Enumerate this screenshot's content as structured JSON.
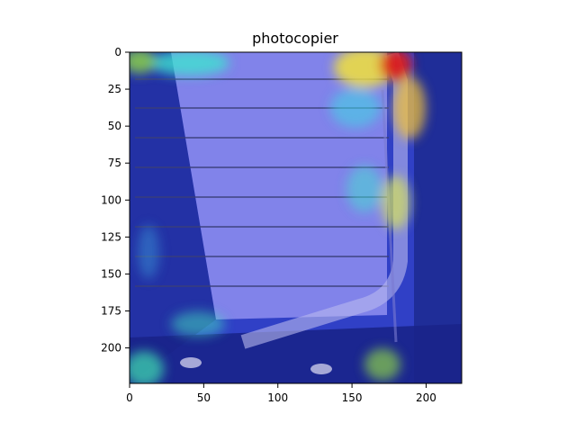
{
  "chart_data": {
    "type": "heatmap",
    "title": "photocopier",
    "image_size": [
      224,
      224
    ],
    "xlim": [
      0,
      224
    ],
    "ylim": [
      224,
      0
    ],
    "x_ticks": [
      0,
      50,
      100,
      150,
      200
    ],
    "y_ticks": [
      0,
      25,
      50,
      75,
      100,
      125,
      150,
      175,
      200
    ],
    "x_tick_labels": [
      "0",
      "50",
      "100",
      "150",
      "200"
    ],
    "y_tick_labels": [
      "0",
      "25",
      "50",
      "75",
      "100",
      "125",
      "150",
      "175",
      "200"
    ],
    "colormap": "jet",
    "hotspots": [
      {
        "x": 180,
        "y": 10,
        "intensity": 1.0
      },
      {
        "x": 165,
        "y": 15,
        "intensity": 0.75
      },
      {
        "x": 180,
        "y": 45,
        "intensity": 0.6
      },
      {
        "x": 178,
        "y": 110,
        "intensity": 0.55
      },
      {
        "x": 10,
        "y": 8,
        "intensity": 0.55
      },
      {
        "x": 175,
        "y": 200,
        "intensity": 0.4
      },
      {
        "x": 8,
        "y": 210,
        "intensity": 0.4
      }
    ],
    "grid": false
  },
  "colors": {
    "background": "#ffffff",
    "axis": "#000000",
    "heatmap_base": "#2f3fc8",
    "hot": "#d91a1a",
    "warm": "#f2e23a",
    "cool": "#3fe3d0"
  }
}
